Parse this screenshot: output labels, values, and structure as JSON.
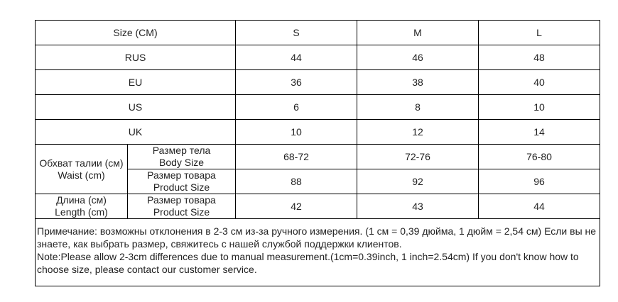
{
  "table": {
    "header": [
      "Size (CM)",
      "S",
      "M",
      "L"
    ],
    "rows": [
      {
        "label": "RUS",
        "values": [
          44,
          46,
          48
        ]
      },
      {
        "label": "EU",
        "values": [
          36,
          38,
          40
        ]
      },
      {
        "label": "US",
        "values": [
          6,
          8,
          10
        ]
      },
      {
        "label": "UK",
        "values": [
          10,
          12,
          14
        ]
      }
    ],
    "groups": [
      {
        "label": [
          "Обхват талии (см)",
          "Waist (cm)"
        ],
        "rows": [
          {
            "label": [
              "Размер тела",
              "Body Size"
            ],
            "values": [
              "68-72",
              "72-76",
              "76-80"
            ]
          },
          {
            "label": [
              "Размер товара",
              "Product Size"
            ],
            "values": [
              88,
              92,
              96
            ]
          }
        ]
      },
      {
        "label": [
          "Длина (см)",
          "Length (cm)"
        ],
        "rows": [
          {
            "label": [
              "Размер товара",
              "Product Size"
            ],
            "values": [
              42,
              43,
              44
            ]
          }
        ]
      }
    ],
    "note": [
      "Примечание: возможны отклонения в 2-3 см из-за ручного измерения. (1 см = 0,39 дюйма, 1 дюйм = 2,54 см) Если вы не знаете, как выбрать размер, свяжитесь с нашей службой поддержки клиентов.",
      "Note:Please allow 2-3cm differences due to manual measurement.(1cm=0.39inch, 1 inch=2.54cm) If you don't know how to choose size, please contact our customer service."
    ]
  }
}
